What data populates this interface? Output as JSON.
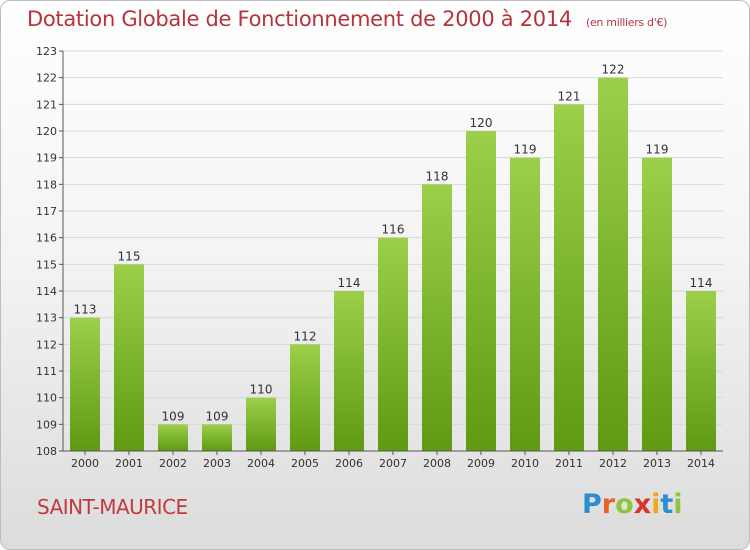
{
  "title": "Dotation Globale de Fonctionnement de 2000 à 2014",
  "unit": "(en milliers d'€)",
  "commune": "SAINT-MAURICE",
  "logo": {
    "text": "Proxiti",
    "letters": [
      {
        "ch": "P",
        "color": "#2a8fd0"
      },
      {
        "ch": "r",
        "color": "#e8632a"
      },
      {
        "ch": "o",
        "color": "#8cc63f"
      },
      {
        "ch": "x",
        "color": "#d9322f"
      },
      {
        "ch": "i",
        "color": "#f2a81d"
      },
      {
        "ch": "t",
        "color": "#2a8fd0"
      },
      {
        "ch": "i",
        "color": "#8cc63f"
      }
    ]
  },
  "colors": {
    "title": "#b5343c",
    "bar_top": "#9ccf4a",
    "bar_bottom": "#5e9a12",
    "grid": "#d8d8d8"
  },
  "chart_data": {
    "type": "bar",
    "title": "Dotation Globale de Fonctionnement de 2000 à 2014",
    "subtitle": "(en milliers d'€)",
    "xlabel": "",
    "ylabel": "",
    "categories": [
      "2000",
      "2001",
      "2002",
      "2003",
      "2004",
      "2005",
      "2006",
      "2007",
      "2008",
      "2009",
      "2010",
      "2011",
      "2012",
      "2013",
      "2014"
    ],
    "values": [
      113,
      115,
      109,
      109,
      110,
      112,
      114,
      116,
      118,
      120,
      119,
      121,
      122,
      119,
      114
    ],
    "ylim": [
      108,
      123
    ],
    "yticks": [
      108,
      109,
      110,
      111,
      112,
      113,
      114,
      115,
      116,
      117,
      118,
      119,
      120,
      121,
      122,
      123
    ],
    "grid": true,
    "legend": "none"
  }
}
